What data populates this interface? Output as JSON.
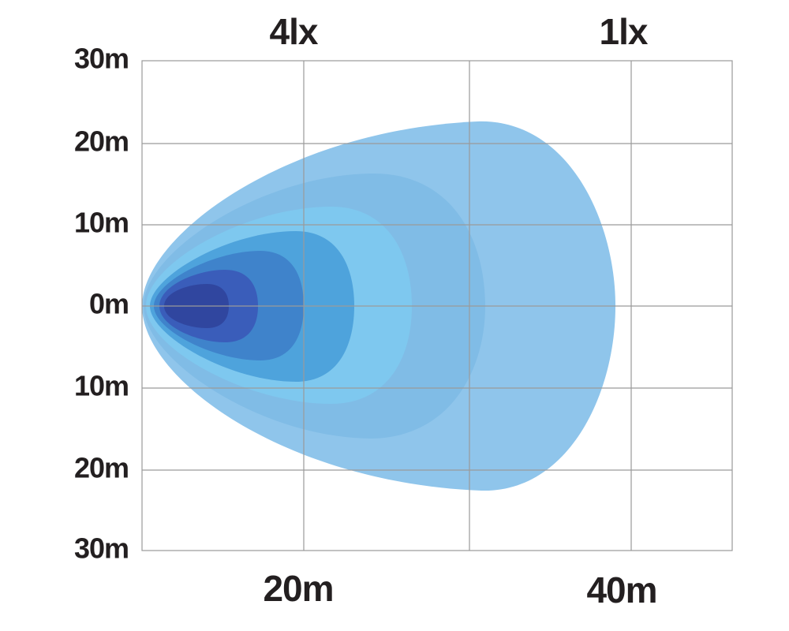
{
  "top_labels": [
    "4lx",
    "1lx"
  ],
  "y_labels": [
    "30m",
    "20m",
    "10m",
    "0m",
    "10m",
    "20m",
    "30m"
  ],
  "x_labels": [
    "20m",
    "40m"
  ]
}
